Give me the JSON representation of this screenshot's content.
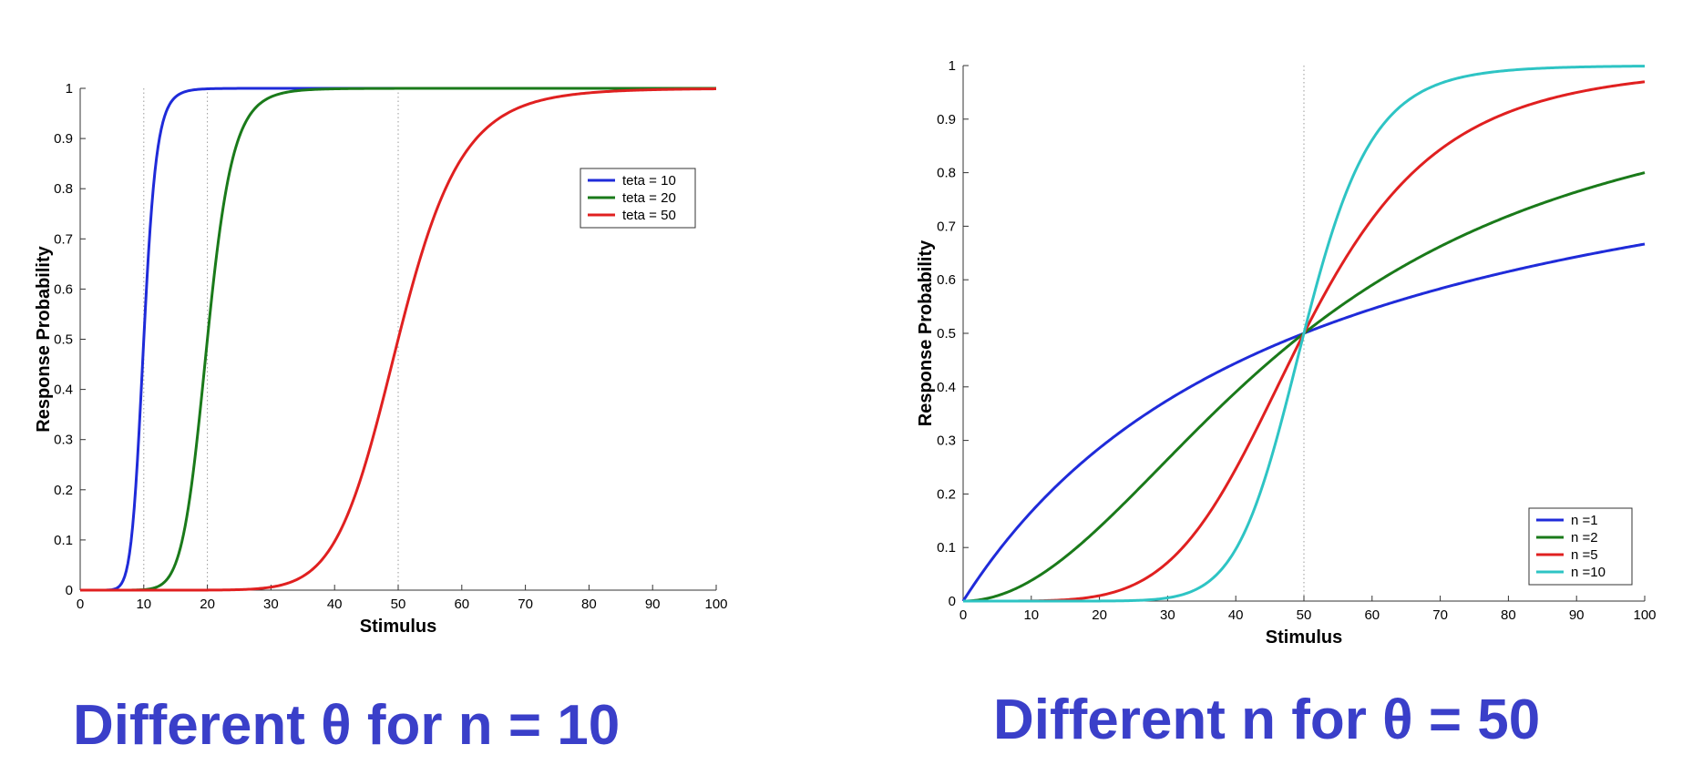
{
  "captions": {
    "left": "Different θ for n = 10",
    "right": "Different n for θ = 50"
  },
  "colors": {
    "caption": "#3a3fc9",
    "blue": "#1f2bd9",
    "green": "#1a7a1a",
    "red": "#e02020",
    "cyan": "#2ec4c4"
  },
  "chart_data": [
    {
      "type": "line",
      "title": "",
      "xlabel": "Stimulus",
      "ylabel": "Response Probability",
      "xlim": [
        0,
        100
      ],
      "ylim": [
        0,
        1
      ],
      "xticks": [
        0,
        10,
        20,
        30,
        40,
        50,
        60,
        70,
        80,
        90,
        100
      ],
      "yticks": [
        0,
        0.1,
        0.2,
        0.3,
        0.4,
        0.5,
        0.6,
        0.7,
        0.8,
        0.9,
        1
      ],
      "ytick_labels": [
        "0",
        "0.1",
        "0.2",
        "0.3",
        "0.4",
        "0.5",
        "0.6",
        "0.7",
        "0.8",
        "0.9",
        "1"
      ],
      "vlines": [
        10,
        20,
        50
      ],
      "legend_position": "upper-right",
      "series": [
        {
          "name": "teta = 10",
          "color": "#1f2bd9",
          "theta": 10,
          "n": 10,
          "x": [
            0,
            5,
            8,
            9,
            10,
            11,
            12,
            14,
            16,
            20,
            30,
            100
          ],
          "y": [
            0,
            0.0001,
            0.097,
            0.258,
            0.5,
            0.722,
            0.861,
            0.967,
            0.991,
            0.999,
            1,
            1
          ]
        },
        {
          "name": "teta = 20",
          "color": "#1a7a1a",
          "theta": 20,
          "n": 10,
          "x": [
            0,
            10,
            14,
            16,
            18,
            20,
            22,
            24,
            26,
            30,
            35,
            40,
            100
          ],
          "y": [
            0,
            0.001,
            0.027,
            0.097,
            0.258,
            0.5,
            0.722,
            0.861,
            0.932,
            0.983,
            0.997,
            0.999,
            1
          ]
        },
        {
          "name": "teta = 50",
          "color": "#e02020",
          "theta": 50,
          "n": 10,
          "x": [
            0,
            20,
            25,
            30,
            35,
            40,
            45,
            50,
            55,
            60,
            65,
            70,
            75,
            80,
            90,
            100
          ],
          "y": [
            0,
            0.0001,
            0.001,
            0.006,
            0.027,
            0.097,
            0.258,
            0.5,
            0.722,
            0.861,
            0.932,
            0.967,
            0.983,
            0.991,
            0.997,
            0.999
          ]
        }
      ]
    },
    {
      "type": "line",
      "title": "",
      "xlabel": "Stimulus",
      "ylabel": "Response Probability",
      "xlim": [
        0,
        100
      ],
      "ylim": [
        0,
        1
      ],
      "xticks": [
        0,
        10,
        20,
        30,
        40,
        50,
        60,
        70,
        80,
        90,
        100
      ],
      "yticks": [
        0,
        0.1,
        0.2,
        0.3,
        0.4,
        0.5,
        0.6,
        0.7,
        0.8,
        0.9,
        1
      ],
      "ytick_labels": [
        "0",
        "0.1",
        "0.2",
        "0.3",
        "0.4",
        "0.5",
        "0.6",
        "0.7",
        "0.8",
        "0.9",
        "1"
      ],
      "vlines": [
        50
      ],
      "legend_position": "lower-right",
      "series": [
        {
          "name": "n =1",
          "color": "#1f2bd9",
          "theta": 50,
          "n": 1,
          "x": [
            0,
            10,
            20,
            30,
            40,
            50,
            60,
            70,
            80,
            90,
            100
          ],
          "y": [
            0,
            0.167,
            0.286,
            0.375,
            0.444,
            0.5,
            0.545,
            0.583,
            0.615,
            0.643,
            0.667
          ]
        },
        {
          "name": "n =2",
          "color": "#1a7a1a",
          "theta": 50,
          "n": 2,
          "x": [
            0,
            10,
            20,
            30,
            40,
            50,
            60,
            70,
            80,
            90,
            100
          ],
          "y": [
            0,
            0.038,
            0.138,
            0.265,
            0.39,
            0.5,
            0.59,
            0.662,
            0.719,
            0.764,
            0.8
          ]
        },
        {
          "name": "n =5",
          "color": "#e02020",
          "theta": 50,
          "n": 5,
          "x": [
            0,
            10,
            20,
            30,
            35,
            40,
            45,
            50,
            55,
            60,
            65,
            70,
            80,
            90,
            100
          ],
          "y": [
            0,
            0.0003,
            0.01,
            0.072,
            0.144,
            0.247,
            0.371,
            0.5,
            0.617,
            0.713,
            0.788,
            0.843,
            0.913,
            0.95,
            0.97
          ]
        },
        {
          "name": "n =10",
          "color": "#2ec4c4",
          "theta": 50,
          "n": 10,
          "x": [
            0,
            20,
            25,
            30,
            35,
            40,
            45,
            50,
            55,
            60,
            65,
            70,
            75,
            80,
            90,
            100
          ],
          "y": [
            0,
            0.0001,
            0.001,
            0.006,
            0.027,
            0.097,
            0.258,
            0.5,
            0.722,
            0.861,
            0.932,
            0.967,
            0.983,
            0.991,
            0.997,
            0.999
          ]
        }
      ]
    }
  ]
}
